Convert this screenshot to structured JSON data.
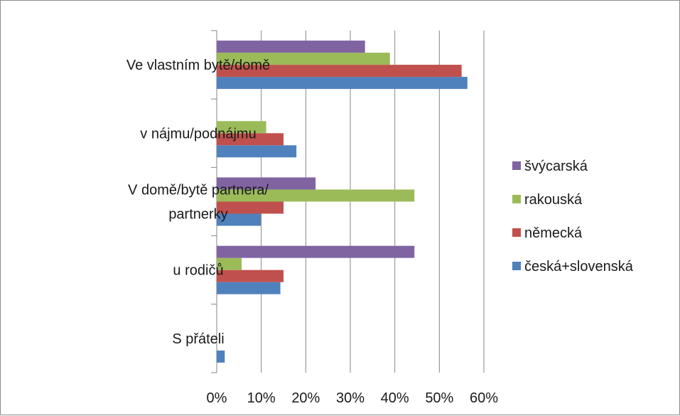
{
  "chart_data": {
    "type": "bar",
    "orientation": "horizontal",
    "categories": [
      [
        "Ve vlastním bytě/domě"
      ],
      [
        "v nájmu/podnájmu"
      ],
      [
        "V domě/bytě partnera/",
        "partnerky"
      ],
      [
        "u rodičů"
      ],
      [
        "S přáteli"
      ]
    ],
    "series": [
      {
        "name": "česká+slovenská",
        "color": "#4f81bd",
        "values": [
          56.3,
          17.9,
          9.9,
          14.3,
          1.8
        ]
      },
      {
        "name": "německá",
        "color": "#c0504d",
        "values": [
          55.0,
          15.0,
          15.0,
          15.0,
          0
        ]
      },
      {
        "name": "rakouská",
        "color": "#9bbb59",
        "values": [
          38.9,
          11.1,
          44.4,
          5.6,
          0
        ]
      },
      {
        "name": "švýcarská",
        "color": "#8064a2",
        "values": [
          33.3,
          0,
          22.2,
          44.4,
          0
        ]
      }
    ],
    "xlim": [
      0,
      60
    ],
    "xticks": [
      0,
      10,
      20,
      30,
      40,
      50,
      60
    ],
    "tick_labels": [
      "0%",
      "10%",
      "20%",
      "30%",
      "40%",
      "50%",
      "60%"
    ],
    "grid": true,
    "legend_position": "right",
    "legend_order": [
      "švýcarská",
      "rakouská",
      "německá",
      "česká+slovenská"
    ],
    "gridline_color": "#868686",
    "axis_color": "#868686"
  }
}
